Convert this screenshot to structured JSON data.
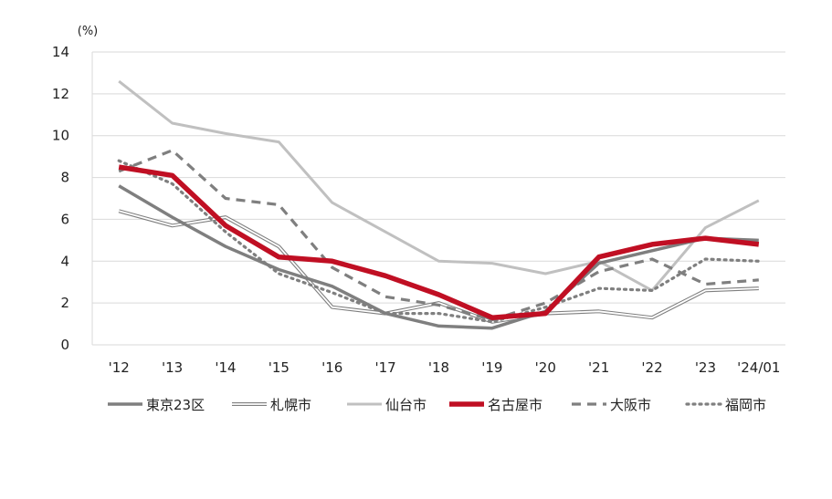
{
  "chart_data": {
    "type": "line",
    "unit_label": "(%)",
    "x": [
      "'12",
      "'13",
      "'14",
      "'15",
      "'16",
      "'17",
      "'18",
      "'19",
      "'20",
      "'21",
      "'22",
      "'23",
      "'24/01"
    ],
    "ylim": [
      0,
      14
    ],
    "yticks": [
      0,
      2,
      4,
      6,
      8,
      10,
      12,
      14
    ],
    "grid": true,
    "legend_position": "bottom",
    "series": [
      {
        "name": "東京23区",
        "style": "solid-thick",
        "color": "#7f7f7f",
        "values": [
          7.6,
          6.1,
          4.7,
          3.6,
          2.8,
          1.5,
          0.9,
          0.8,
          1.6,
          3.9,
          4.5,
          5.1,
          5.0
        ]
      },
      {
        "name": "札幌市",
        "style": "double-line",
        "color": "#7f7f7f",
        "values": [
          6.4,
          5.7,
          6.1,
          4.7,
          1.8,
          1.5,
          2.0,
          1.1,
          1.5,
          1.6,
          1.3,
          2.6,
          2.7
        ]
      },
      {
        "name": "仙台市",
        "style": "solid-light",
        "color": "#c0c0c0",
        "values": [
          12.6,
          10.6,
          10.1,
          9.7,
          6.8,
          5.4,
          4.0,
          3.9,
          3.4,
          4.0,
          2.6,
          5.6,
          6.9
        ]
      },
      {
        "name": "名古屋市",
        "style": "solid-bold",
        "color": "#c00f23",
        "values": [
          8.5,
          8.1,
          5.7,
          4.2,
          4.0,
          3.3,
          2.4,
          1.3,
          1.5,
          4.2,
          4.8,
          5.1,
          4.8
        ]
      },
      {
        "name": "大阪市",
        "style": "dashed",
        "color": "#7f7f7f",
        "values": [
          8.3,
          9.3,
          7.0,
          6.7,
          3.7,
          2.3,
          1.9,
          1.2,
          2.0,
          3.5,
          4.1,
          2.9,
          3.1
        ]
      },
      {
        "name": "福岡市",
        "style": "dotted",
        "color": "#7f7f7f",
        "values": [
          8.8,
          7.7,
          5.4,
          3.4,
          2.5,
          1.5,
          1.5,
          1.1,
          1.8,
          2.7,
          2.6,
          4.1,
          4.0
        ]
      }
    ]
  }
}
